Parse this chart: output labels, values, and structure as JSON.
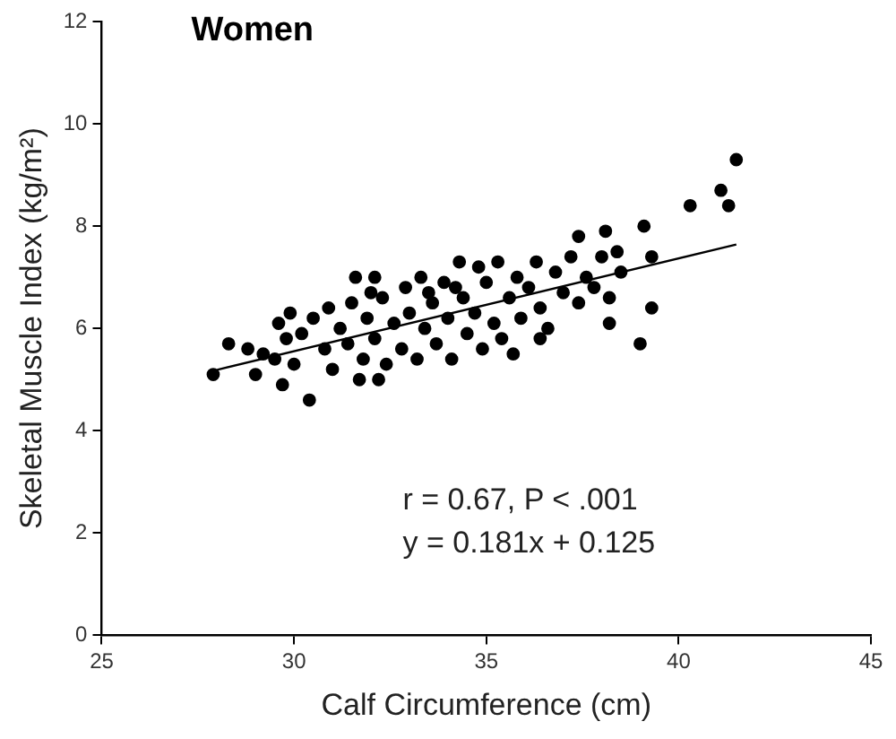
{
  "chart_data": {
    "type": "scatter",
    "title": "Women",
    "xlabel": "Calf Circumference (cm)",
    "ylabel": "Skeletal Muscle Index (kg/m²)",
    "xlim": [
      25,
      45
    ],
    "xticks": [
      25,
      30,
      35,
      40,
      45
    ],
    "ylim": [
      0,
      12
    ],
    "yticks": [
      0,
      2,
      4,
      6,
      8,
      10,
      12
    ],
    "grid": false,
    "legend": false,
    "marker": "circle",
    "annotations": [
      "r = 0.67, P < .001",
      "y = 0.181x + 0.125"
    ],
    "series": [
      {
        "color": "#000000",
        "x": [
          30.2,
          30.5,
          30.8,
          30.9,
          31.0,
          31.2,
          31.4,
          31.5,
          31.8,
          31.9,
          32.1,
          32.3,
          32.4,
          32.6,
          32.8,
          32.9,
          33.0,
          33.2,
          33.3,
          33.4,
          33.6,
          33.7,
          33.9,
          34.0,
          34.1,
          34.3,
          34.4,
          34.5,
          34.7,
          34.8,
          34.9,
          35.0,
          35.2,
          35.3,
          35.4,
          35.6,
          35.8,
          35.9,
          36.1,
          36.3,
          36.4,
          36.6,
          36.8,
          37.0,
          37.2,
          37.4,
          37.6,
          37.8,
          38.0,
          38.2,
          38.4,
          38.5,
          29.8,
          29.9,
          29.2,
          30.0,
          33.5,
          34.2,
          32.0,
          41.5,
          41.1,
          41.3,
          40.3,
          39.1,
          38.1,
          39.3,
          39.3,
          39.0,
          38.2,
          30.4,
          27.9,
          29.7,
          29.0,
          28.3,
          28.8,
          29.5,
          29.6,
          31.6,
          32.1,
          32.2,
          31.7,
          35.7,
          36.4,
          37.4
        ],
        "values": [
          5.9,
          6.2,
          5.6,
          6.4,
          5.2,
          6.0,
          5.7,
          6.5,
          5.4,
          6.2,
          5.8,
          6.6,
          5.3,
          6.1,
          5.6,
          6.8,
          6.3,
          5.4,
          7.0,
          6.0,
          6.5,
          5.7,
          6.9,
          6.2,
          5.4,
          7.3,
          6.6,
          5.9,
          6.3,
          7.2,
          5.6,
          6.9,
          6.1,
          7.3,
          5.8,
          6.6,
          7.0,
          6.2,
          6.8,
          7.3,
          6.4,
          6.0,
          7.1,
          6.7,
          7.4,
          6.5,
          7.0,
          6.8,
          7.4,
          6.6,
          7.5,
          7.1,
          5.8,
          6.3,
          5.5,
          5.3,
          6.7,
          6.8,
          6.7,
          9.3,
          8.7,
          8.4,
          8.4,
          8.0,
          7.9,
          7.4,
          6.4,
          5.7,
          6.1,
          4.6,
          5.1,
          4.9,
          5.1,
          5.7,
          5.6,
          5.4,
          6.1,
          7.0,
          7.0,
          5.0,
          5.0,
          5.5,
          5.8,
          7.8
        ]
      },
      {
        "type": "line",
        "color": "#000000",
        "marker": "none",
        "x": [
          28,
          41.5
        ],
        "values": [
          5.19,
          7.64
        ]
      }
    ]
  }
}
